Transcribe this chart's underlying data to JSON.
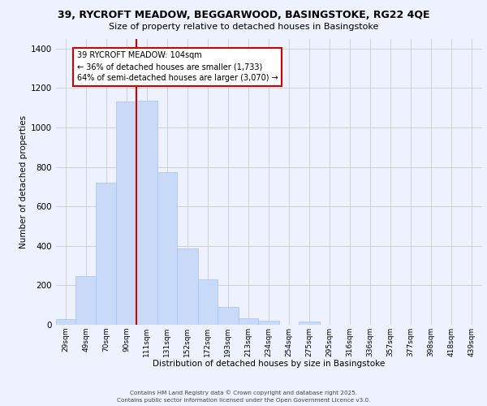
{
  "title_line1": "39, RYCROFT MEADOW, BEGGARWOOD, BASINGSTOKE, RG22 4QE",
  "title_line2": "Size of property relative to detached houses in Basingstoke",
  "xlabel": "Distribution of detached houses by size in Basingstoke",
  "ylabel": "Number of detached properties",
  "bar_labels": [
    "29sqm",
    "49sqm",
    "70sqm",
    "90sqm",
    "111sqm",
    "131sqm",
    "152sqm",
    "172sqm",
    "193sqm",
    "213sqm",
    "234sqm",
    "254sqm",
    "275sqm",
    "295sqm",
    "316sqm",
    "336sqm",
    "357sqm",
    "377sqm",
    "398sqm",
    "418sqm",
    "439sqm"
  ],
  "bar_values": [
    30,
    248,
    720,
    1130,
    1135,
    775,
    385,
    232,
    90,
    33,
    20,
    0,
    15,
    0,
    0,
    0,
    0,
    0,
    0,
    0,
    0
  ],
  "bar_color": "#c9daf8",
  "bar_edge_color": "#a4c2f4",
  "vline_x_index": 4,
  "vline_color": "#cc0000",
  "annotation_title": "39 RYCROFT MEADOW: 104sqm",
  "annotation_line2": "← 36% of detached houses are smaller (1,733)",
  "annotation_line3": "64% of semi-detached houses are larger (3,070) →",
  "annotation_box_color": "#ffffff",
  "annotation_box_edge": "#cc0000",
  "ylim": [
    0,
    1450
  ],
  "yticks": [
    0,
    200,
    400,
    600,
    800,
    1000,
    1200,
    1400
  ],
  "grid_color": "#cccccc",
  "bg_color": "#eef2ff",
  "footer_line1": "Contains HM Land Registry data © Crown copyright and database right 2025.",
  "footer_line2": "Contains public sector information licensed under the Open Government Licence v3.0.",
  "bin_edges": [
    19,
    39,
    59,
    80,
    100,
    121,
    141,
    162,
    182,
    203,
    223,
    244,
    264,
    285,
    305,
    326,
    346,
    367,
    387,
    408,
    428,
    449
  ]
}
